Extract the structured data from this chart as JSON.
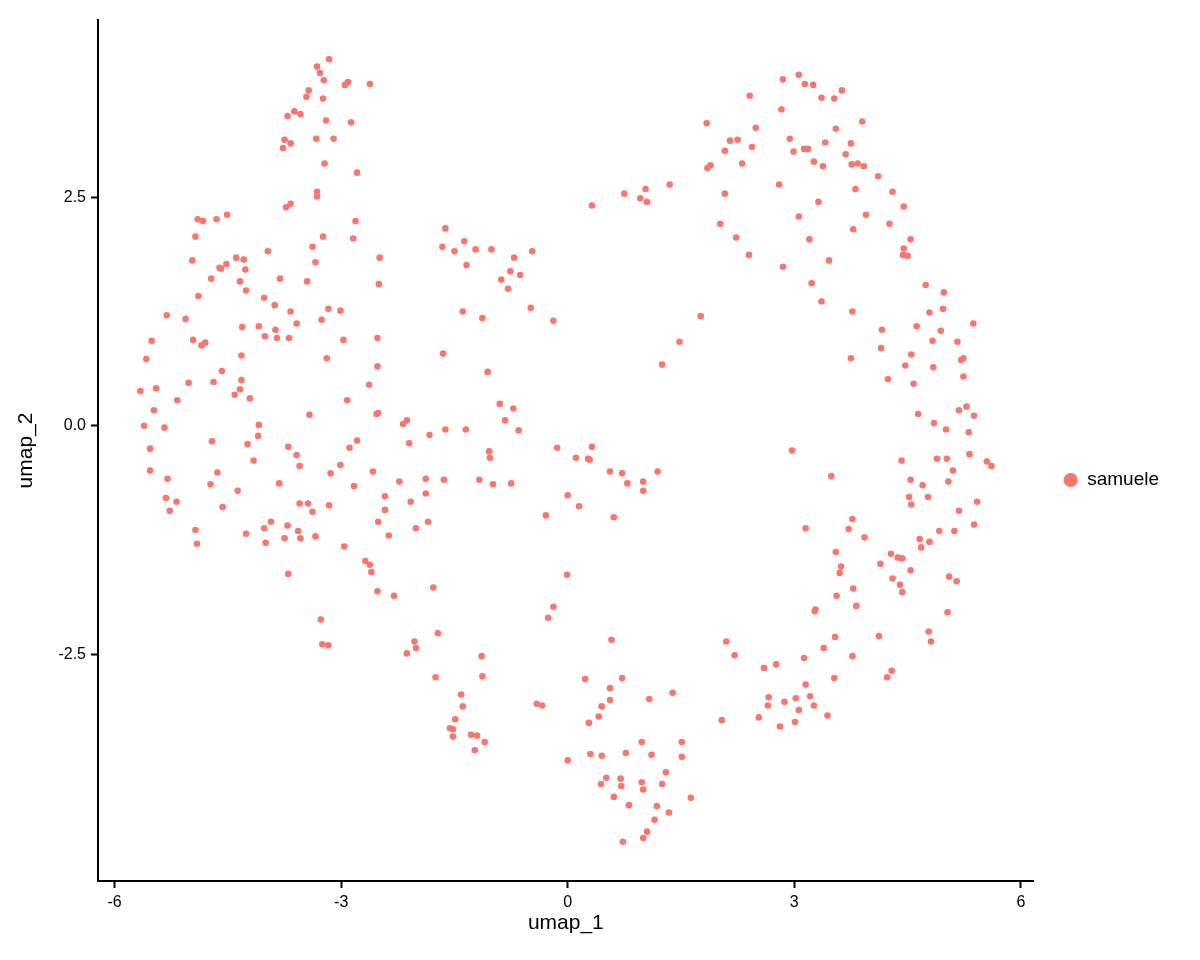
{
  "chart_data": {
    "type": "scatter",
    "xlabel": "umap_1",
    "ylabel": "umap_2",
    "xlim": [
      -6.22,
      6.17
    ],
    "ylim": [
      -4.98,
      4.44
    ],
    "xticks": [
      -6,
      -3,
      0,
      3,
      6
    ],
    "yticks": [
      -2.5,
      {
        "value": 0,
        "label": "0.0"
      },
      2.5
    ],
    "grid": false,
    "legend": "right",
    "marker": "circle",
    "x": [
      -3.16,
      -3.32,
      -3.28,
      -3.23,
      -2.95,
      -2.91,
      -2.62,
      -3.43,
      -3.46,
      -3.24,
      -3.62,
      -3.54,
      -3.71,
      -3.2,
      -2.87,
      -3.75,
      -3.67,
      -3.77,
      -3.33,
      -3.1,
      -3.22,
      -2.79,
      -3.32,
      -3.32,
      -3.67,
      -3.73,
      -4.9,
      -4.83,
      -4.65,
      -4.51,
      -2.81,
      -4.93,
      -3.24,
      -2.84,
      -3.38,
      -3.97,
      -2.49,
      -4.97,
      -3.34,
      -4.39,
      -4.29,
      -4.52,
      -4.61,
      -4.59,
      -4.27,
      -4.72,
      -4.34,
      -3.81,
      -3.45,
      -2.5,
      -4.26,
      -4.89,
      -4.02,
      -3.88,
      -3.67,
      -3.17,
      -3.01,
      -5.31,
      -5.06,
      -3.26,
      -3.59,
      -4.31,
      -4.09,
      -3.87,
      -4.01,
      -3.85,
      -3.69,
      -2.97,
      -2.52,
      -5.51,
      -4.96,
      -4.8,
      -4.85,
      -5.58,
      -4.32,
      -3.19,
      -2.52,
      -4.58,
      -5.66,
      -5.45,
      -5.02,
      -4.69,
      -4.32,
      -4.34,
      -4.41,
      -4.21,
      -5.17,
      -2.63,
      -2.92,
      -5.48,
      -3.42,
      -2.53,
      -2.51,
      -2.18,
      -2.13,
      -5.61,
      -5.34,
      -4.09,
      -4.1,
      -4.71,
      -4.24,
      -2.1,
      -2.79,
      -2.89,
      -3.7,
      -5.53,
      -5.53,
      -5.3,
      -4.16,
      -3.59,
      -3.55,
      -4.64,
      -4.73,
      -3.82,
      -4.37,
      -5.32,
      -5.18,
      -5.27,
      -4.57,
      -3.14,
      -3.01,
      -2.83,
      -2.58,
      -3.55,
      -3.44,
      -3.38,
      -3.16,
      -2.23,
      -2.42,
      -2.42,
      -2.08,
      -2.51,
      -2.37,
      -2.01,
      -4.93,
      -4.91,
      -4.26,
      -4.02,
      -3.93,
      -4.0,
      -3.71,
      -3.75,
      -3.57,
      -3.54,
      -3.34,
      -2.96,
      -2.68,
      -2.62,
      -2.6,
      -2.52,
      -2.3,
      -3.7,
      -3.27,
      -3.25,
      -3.17,
      -2.03,
      -2.01,
      -2.13,
      1.84,
      1.85,
      1.89,
      1.35,
      0.75,
      1.03,
      0.96,
      1.05,
      0.32,
      2.08,
      2.02,
      -1.62,
      -1.66,
      -1.5,
      -1.37,
      -1.22,
      -1.01,
      -1.34,
      -0.71,
      -0.47,
      -0.76,
      -0.63,
      -0.88,
      -0.79,
      -0.49,
      -0.19,
      -1.39,
      -1.13,
      1.76,
      1.48,
      1.25,
      -1.65,
      -1.06,
      -0.9,
      -0.72,
      -0.83,
      -0.65,
      -1.62,
      -1.35,
      -1.83,
      -0.14,
      0.32,
      -1.04,
      -1.03,
      0.11,
      0.27,
      0.29,
      -1.88,
      -1.64,
      -1.17,
      -0.99,
      -0.75,
      -1.88,
      -1.85,
      0.56,
      0.72,
      0.79,
      1.0,
      1.0,
      1.19,
      0.0,
      0.15,
      -0.29,
      0.61,
      -0.01,
      -1.78,
      -0.19,
      -0.26,
      -1.72,
      0.58,
      -1.14,
      -1.75,
      -1.13,
      0.23,
      0.72,
      0.56,
      0.56,
      0.45,
      0.41,
      0.28,
      1.08,
      1.39,
      -0.41,
      -0.34,
      -1.41,
      -1.39,
      -1.49,
      -1.56,
      -1.52,
      -1.52,
      -1.28,
      -1.2,
      -1.1,
      -1.23,
      0.0,
      0.3,
      0.45,
      0.77,
      0.98,
      1.11,
      1.51,
      1.51,
      1.3,
      0.51,
      0.44,
      0.7,
      0.71,
      0.98,
      1.0,
      1.25,
      0.61,
      0.81,
      1.18,
      1.34,
      1.63,
      1.15,
      1.05,
      1.0,
      0.73,
      3.06,
      2.85,
      3.14,
      3.25,
      2.41,
      3.36,
      3.53,
      3.63,
      2.83,
      3.9,
      2.49,
      3.55,
      2.15,
      2.25,
      2.08,
      2.44,
      2.94,
      2.99,
      3.13,
      3.18,
      3.41,
      3.75,
      3.68,
      3.26,
      3.38,
      3.76,
      3.84,
      3.92,
      2.31,
      4.11,
      2.8,
      3.81,
      4.3,
      4.45,
      3.32,
      3.06,
      3.95,
      4.26,
      3.78,
      2.23,
      3.2,
      4.54,
      4.45,
      4.44,
      4.5,
      2.4,
      2.85,
      3.46,
      3.23,
      3.36,
      3.77,
      4.74,
      4.98,
      4.97,
      4.79,
      5.37,
      4.16,
      4.62,
      4.94,
      4.83,
      5.16,
      4.15,
      4.55,
      4.47,
      4.84,
      3.75,
      5.21,
      5.24,
      5.24,
      4.24,
      4.58,
      5.28,
      5.18,
      5.38,
      4.64,
      4.85,
      5.01,
      5.31,
      2.97,
      3.49,
      4.42,
      4.89,
      5.02,
      5.32,
      5.55,
      5.61,
      5.1,
      4.54,
      4.7,
      5.04,
      4.52,
      4.55,
      4.77,
      5.42,
      5.18,
      5.38,
      4.92,
      5.12,
      4.66,
      4.68,
      4.79,
      3.77,
      3.72,
      3.93,
      3.15,
      3.55,
      3.62,
      3.6,
      4.14,
      4.28,
      4.37,
      4.43,
      4.54,
      4.3,
      4.4,
      4.43,
      5.05,
      5.15,
      3.78,
      3.56,
      3.82,
      3.27,
      3.28,
      5.03,
      3.54,
      4.12,
      4.78,
      4.81,
      3.39,
      3.77,
      3.13,
      2.21,
      2.1,
      2.6,
      2.76,
      4.29,
      4.23,
      3.53,
      3.15,
      2.66,
      2.65,
      2.87,
      3.02,
      3.21,
      3.26,
      3.06,
      3.44,
      2.53,
      2.81,
      3.01,
      2.04
    ],
    "series": [
      {
        "name": "samuele",
        "color": "#f8766d",
        "values": [
          4.01,
          3.93,
          3.86,
          3.78,
          3.73,
          3.76,
          3.74,
          3.67,
          3.6,
          3.58,
          3.44,
          3.41,
          3.39,
          3.34,
          3.32,
          3.13,
          3.09,
          3.04,
          3.14,
          3.14,
          2.87,
          2.77,
          2.56,
          2.51,
          2.43,
          2.39,
          2.26,
          2.24,
          2.26,
          2.31,
          2.24,
          2.07,
          2.07,
          2.05,
          1.96,
          1.91,
          1.84,
          1.81,
          1.79,
          1.84,
          1.82,
          1.77,
          1.73,
          1.72,
          1.71,
          1.61,
          1.58,
          1.61,
          1.58,
          1.55,
          1.48,
          1.42,
          1.4,
          1.32,
          1.25,
          1.28,
          1.26,
          1.21,
          1.17,
          1.16,
          1.12,
          1.08,
          1.09,
          1.05,
          0.98,
          0.96,
          0.96,
          0.94,
          0.96,
          0.93,
          0.94,
          0.91,
          0.88,
          0.73,
          0.77,
          0.74,
          0.65,
          0.6,
          0.38,
          0.41,
          0.47,
          0.48,
          0.5,
          0.4,
          0.34,
          0.3,
          0.28,
          0.45,
          0.28,
          0.17,
          0.12,
          0.13,
          0.14,
          0.02,
          0.06,
          0.0,
          -0.02,
          0.01,
          -0.11,
          -0.17,
          -0.2,
          -0.19,
          -0.16,
          -0.24,
          -0.23,
          -0.25,
          -0.49,
          -0.58,
          -0.38,
          -0.32,
          -0.44,
          -0.51,
          -0.64,
          -0.63,
          -0.71,
          -0.79,
          -0.83,
          -0.93,
          -0.89,
          -0.52,
          -0.43,
          -0.66,
          -0.5,
          -0.85,
          -0.85,
          -0.94,
          -0.87,
          -0.61,
          -0.77,
          -0.92,
          -0.83,
          -1.05,
          -1.2,
          -1.12,
          -1.14,
          -1.29,
          -1.18,
          -1.12,
          -1.05,
          -1.28,
          -1.09,
          -1.23,
          -1.15,
          -1.23,
          -1.21,
          -1.32,
          -1.48,
          -1.52,
          -1.6,
          -1.81,
          -1.86,
          -1.62,
          -2.12,
          -2.39,
          -2.4,
          -2.36,
          -2.43,
          -2.49,
          3.31,
          2.82,
          2.85,
          2.64,
          2.54,
          2.59,
          2.49,
          2.45,
          2.41,
          2.54,
          2.21,
          2.16,
          1.96,
          1.91,
          2.02,
          1.93,
          1.93,
          1.76,
          1.84,
          1.91,
          1.69,
          1.65,
          1.6,
          1.5,
          1.29,
          1.15,
          1.25,
          1.18,
          1.2,
          0.92,
          0.67,
          0.79,
          0.59,
          0.24,
          0.19,
          0.06,
          -0.05,
          -0.04,
          -0.04,
          -0.1,
          -0.24,
          -0.23,
          -0.28,
          -0.35,
          -0.35,
          -0.36,
          -0.37,
          -0.58,
          -0.59,
          -0.59,
          -0.64,
          -0.63,
          -0.74,
          -1.05,
          -0.5,
          -0.52,
          -0.63,
          -0.61,
          -0.71,
          -0.5,
          -0.76,
          -0.88,
          -0.98,
          -1.0,
          -1.63,
          -1.77,
          -1.98,
          -2.1,
          -2.27,
          -2.34,
          -2.52,
          -2.75,
          -2.74,
          -2.77,
          -2.76,
          -2.87,
          -3.0,
          -3.07,
          -3.18,
          -3.25,
          -2.99,
          -2.92,
          -3.04,
          -3.06,
          -2.94,
          -3.07,
          -3.21,
          -3.31,
          -3.32,
          -3.4,
          -3.38,
          -3.39,
          -3.46,
          -3.55,
          -3.66,
          -3.59,
          -3.61,
          -3.58,
          -3.46,
          -3.6,
          -3.46,
          -3.62,
          -3.79,
          -3.85,
          -3.92,
          -3.86,
          -3.94,
          -3.9,
          -3.98,
          -3.92,
          -4.06,
          -4.15,
          -4.16,
          -4.23,
          -4.07,
          -4.31,
          -4.44,
          -4.51,
          -4.55,
          3.84,
          3.79,
          3.74,
          3.73,
          3.61,
          3.59,
          3.58,
          3.67,
          3.46,
          3.33,
          3.26,
          3.25,
          3.12,
          3.13,
          3.01,
          3.05,
          3.14,
          3.0,
          3.03,
          3.03,
          3.1,
          3.09,
          2.97,
          2.89,
          2.84,
          2.86,
          2.87,
          2.84,
          2.87,
          2.73,
          2.64,
          2.59,
          2.56,
          2.4,
          2.45,
          2.29,
          2.31,
          2.21,
          2.15,
          2.06,
          2.04,
          2.04,
          1.94,
          1.87,
          1.86,
          1.87,
          1.74,
          1.81,
          1.56,
          1.36,
          1.25,
          1.54,
          1.46,
          1.28,
          1.24,
          1.12,
          1.05,
          1.09,
          1.04,
          0.93,
          0.92,
          0.85,
          0.78,
          0.66,
          0.64,
          0.74,
          0.72,
          0.74,
          0.54,
          0.51,
          0.46,
          0.21,
          0.17,
          0.11,
          0.13,
          0.03,
          -0.04,
          -0.07,
          -0.27,
          -0.55,
          -0.38,
          -0.36,
          -0.36,
          -0.31,
          -0.39,
          -0.44,
          -0.49,
          -0.59,
          -0.65,
          -0.61,
          -0.78,
          -0.86,
          -0.78,
          -0.83,
          -0.93,
          -1.08,
          -1.15,
          -1.15,
          -1.24,
          -1.33,
          -1.27,
          -1.02,
          -1.13,
          -1.22,
          -1.12,
          -1.38,
          -1.54,
          -1.61,
          -1.51,
          -1.4,
          -1.44,
          -1.45,
          -1.58,
          -1.67,
          -1.74,
          -1.82,
          -1.65,
          -1.7,
          -1.78,
          -1.86,
          -1.97,
          -2.03,
          -2.01,
          -2.04,
          -2.31,
          -2.3,
          -2.25,
          -2.36,
          -2.43,
          -2.52,
          -2.54,
          -2.51,
          -2.36,
          -2.65,
          -2.61,
          -2.68,
          -2.75,
          -2.76,
          -2.83,
          -2.97,
          -3.06,
          -3.02,
          -2.98,
          -2.96,
          -3.06,
          -3.11,
          -3.17,
          -3.19,
          -3.29,
          -3.24,
          -3.22
        ]
      }
    ]
  }
}
